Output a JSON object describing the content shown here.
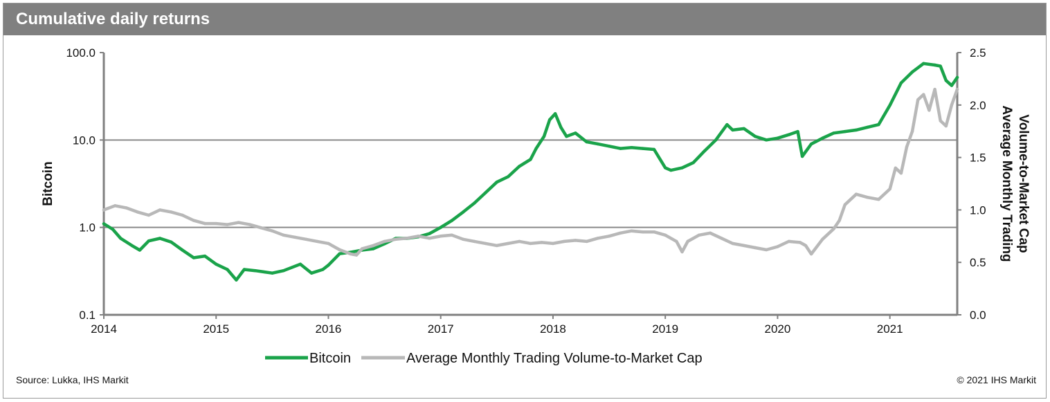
{
  "title": "Cumulative daily returns",
  "source": "Source: Lukka, IHS Markit",
  "copyright": "© 2021 IHS Markit",
  "colors": {
    "bitcoin": "#1aa34a",
    "volume": "#b8b8b8",
    "title_bar": "#808080"
  },
  "chart_data": {
    "type": "line",
    "title": "Cumulative daily returns",
    "xlabel": "",
    "ylabel": "Bitcoin",
    "y2label_lines": [
      "Average Monthly Trading",
      "Volume-to-Market Cap"
    ],
    "yscale": "log",
    "ylim": [
      0.1,
      100
    ],
    "y2lim": [
      0,
      2.5
    ],
    "xlim": [
      2014.0,
      2021.6
    ],
    "grid": true,
    "legend_position": "bottom",
    "x_ticks": [
      "2014",
      "2015",
      "2016",
      "2017",
      "2018",
      "2019",
      "2020",
      "2021"
    ],
    "x_tick_values": [
      2014,
      2015,
      2016,
      2017,
      2018,
      2019,
      2020,
      2021
    ],
    "y_ticks": [
      "100.0",
      "10.0",
      "1.0",
      "0.1"
    ],
    "y_tick_values": [
      100,
      10,
      1,
      0.1
    ],
    "y2_ticks": [
      "2.5",
      "2.0",
      "1.5",
      "1.0",
      "0.5",
      "0.0"
    ],
    "y2_tick_values": [
      2.5,
      2.0,
      1.5,
      1.0,
      0.5,
      0.0
    ],
    "series": [
      {
        "name": "Bitcoin",
        "axis": "left",
        "x": [
          2014.0,
          2014.08,
          2014.15,
          2014.25,
          2014.32,
          2014.4,
          2014.5,
          2014.6,
          2014.7,
          2014.8,
          2014.9,
          2015.0,
          2015.1,
          2015.18,
          2015.25,
          2015.35,
          2015.5,
          2015.6,
          2015.75,
          2015.85,
          2015.95,
          2016.0,
          2016.1,
          2016.2,
          2016.3,
          2016.4,
          2016.5,
          2016.6,
          2016.7,
          2016.8,
          2016.9,
          2017.0,
          2017.1,
          2017.2,
          2017.3,
          2017.4,
          2017.5,
          2017.6,
          2017.7,
          2017.8,
          2017.85,
          2017.92,
          2017.97,
          2018.02,
          2018.07,
          2018.12,
          2018.2,
          2018.3,
          2018.4,
          2018.5,
          2018.6,
          2018.7,
          2018.8,
          2018.9,
          2019.0,
          2019.05,
          2019.15,
          2019.25,
          2019.35,
          2019.45,
          2019.55,
          2019.6,
          2019.7,
          2019.8,
          2019.9,
          2020.0,
          2020.1,
          2020.18,
          2020.22,
          2020.3,
          2020.4,
          2020.5,
          2020.6,
          2020.7,
          2020.8,
          2020.9,
          2021.0,
          2021.1,
          2021.2,
          2021.3,
          2021.4,
          2021.45,
          2021.5,
          2021.55,
          2021.6
        ],
        "values": [
          1.1,
          0.95,
          0.75,
          0.62,
          0.55,
          0.7,
          0.75,
          0.68,
          0.55,
          0.45,
          0.47,
          0.38,
          0.33,
          0.25,
          0.33,
          0.32,
          0.3,
          0.32,
          0.38,
          0.3,
          0.33,
          0.37,
          0.5,
          0.52,
          0.55,
          0.57,
          0.65,
          0.75,
          0.75,
          0.78,
          0.85,
          1.0,
          1.2,
          1.5,
          1.9,
          2.5,
          3.3,
          3.8,
          5.0,
          6.0,
          8.0,
          11.0,
          17.0,
          20.0,
          14.0,
          11.0,
          12.0,
          9.5,
          9.0,
          8.5,
          8.0,
          8.2,
          8.0,
          7.8,
          4.8,
          4.5,
          4.8,
          5.5,
          7.5,
          10.0,
          15.0,
          13.0,
          13.5,
          11.0,
          10.0,
          10.5,
          11.5,
          12.5,
          6.5,
          9.0,
          10.5,
          12.0,
          12.5,
          13.0,
          14.0,
          15.0,
          25.0,
          45.0,
          60.0,
          75.0,
          72.0,
          70.0,
          48.0,
          42.0,
          52.0
        ]
      },
      {
        "name": "Average Monthly Trading Volume-to-Market Cap",
        "axis": "right",
        "x": [
          2014.0,
          2014.1,
          2014.2,
          2014.3,
          2014.4,
          2014.5,
          2014.6,
          2014.7,
          2014.8,
          2014.9,
          2015.0,
          2015.1,
          2015.2,
          2015.3,
          2015.4,
          2015.5,
          2015.6,
          2015.7,
          2015.8,
          2015.9,
          2016.0,
          2016.1,
          2016.2,
          2016.25,
          2016.3,
          2016.4,
          2016.5,
          2016.6,
          2016.7,
          2016.8,
          2016.9,
          2017.0,
          2017.1,
          2017.2,
          2017.3,
          2017.4,
          2017.5,
          2017.6,
          2017.7,
          2017.8,
          2017.9,
          2018.0,
          2018.1,
          2018.2,
          2018.3,
          2018.4,
          2018.5,
          2018.6,
          2018.7,
          2018.8,
          2018.9,
          2019.0,
          2019.1,
          2019.15,
          2019.2,
          2019.3,
          2019.4,
          2019.5,
          2019.6,
          2019.7,
          2019.8,
          2019.9,
          2020.0,
          2020.1,
          2020.2,
          2020.25,
          2020.3,
          2020.4,
          2020.5,
          2020.55,
          2020.6,
          2020.7,
          2020.8,
          2020.9,
          2021.0,
          2021.05,
          2021.1,
          2021.15,
          2021.2,
          2021.25,
          2021.3,
          2021.35,
          2021.4,
          2021.45,
          2021.5,
          2021.55,
          2021.6
        ],
        "values": [
          1.0,
          1.04,
          1.02,
          0.98,
          0.95,
          1.0,
          0.98,
          0.95,
          0.9,
          0.87,
          0.87,
          0.86,
          0.88,
          0.86,
          0.83,
          0.8,
          0.76,
          0.74,
          0.72,
          0.7,
          0.68,
          0.62,
          0.58,
          0.57,
          0.63,
          0.66,
          0.7,
          0.72,
          0.73,
          0.75,
          0.73,
          0.75,
          0.76,
          0.72,
          0.7,
          0.68,
          0.66,
          0.68,
          0.7,
          0.68,
          0.69,
          0.68,
          0.7,
          0.71,
          0.7,
          0.73,
          0.75,
          0.78,
          0.8,
          0.79,
          0.79,
          0.76,
          0.7,
          0.6,
          0.7,
          0.76,
          0.78,
          0.73,
          0.68,
          0.66,
          0.64,
          0.62,
          0.65,
          0.7,
          0.69,
          0.66,
          0.58,
          0.72,
          0.82,
          0.9,
          1.05,
          1.15,
          1.12,
          1.1,
          1.2,
          1.4,
          1.35,
          1.6,
          1.75,
          2.05,
          2.1,
          1.95,
          2.15,
          1.85,
          1.8,
          2.0,
          2.15
        ]
      }
    ]
  }
}
